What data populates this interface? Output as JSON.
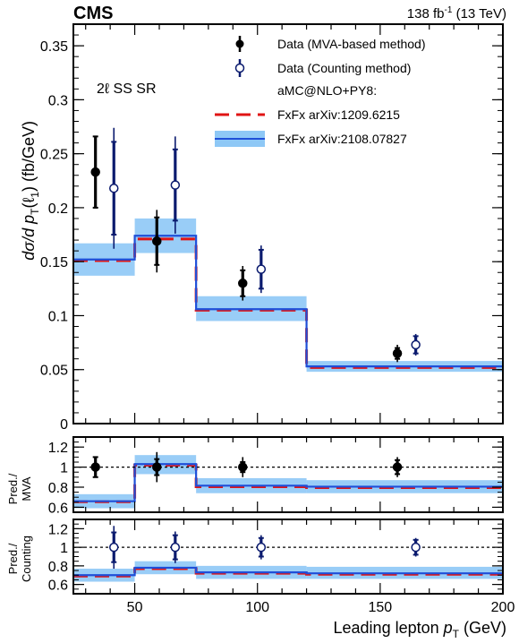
{
  "figure": {
    "experiment": "CMS",
    "lumi_label": "138 fb",
    "lumi_sup": "-1",
    "energy_label": " (13 TeV)",
    "region_label": "2ℓ SS SR",
    "colors": {
      "data_mva": "#000000",
      "data_counting": "#0a1a6e",
      "fxfx_old": "#e01414",
      "fxfx_new_line": "#1f4fd8",
      "fxfx_new_band": "#8ec8f6"
    }
  },
  "chart_data": [
    {
      "type": "line",
      "panel": "main",
      "ylabel_parts": [
        "dσ/d ",
        "p",
        "T",
        "(ℓ",
        "1",
        ")  (fb/GeV)"
      ],
      "ylim": [
        0,
        0.37
      ],
      "yticks": [
        "0",
        "0.05",
        "0.1",
        "0.15",
        "0.2",
        "0.25",
        "0.3",
        "0.35"
      ],
      "xlim": [
        25,
        200
      ],
      "bin_edges": [
        25,
        50,
        75,
        120,
        200
      ],
      "legend": {
        "position": "top-right",
        "entries": [
          "Data (MVA-based method)",
          "Data (Counting method)",
          "aMC@NLO+PY8:",
          "FxFx arXiv:1209.6215",
          "FxFx arXiv:2108.07827"
        ]
      },
      "series": [
        {
          "name": "Data (MVA-based method)",
          "style": "points-filled",
          "x": [
            34,
            59,
            94,
            157
          ],
          "y": [
            0.233,
            0.169,
            0.13,
            0.065
          ],
          "stat_err": [
            0.033,
            0.022,
            0.012,
            0.005
          ],
          "total_err": [
            0.033,
            0.029,
            0.016,
            0.008
          ]
        },
        {
          "name": "Data (Counting method)",
          "style": "points-open",
          "x": [
            41.5,
            66.5,
            101.5,
            164.5
          ],
          "y": [
            0.218,
            0.221,
            0.143,
            0.073
          ],
          "stat_err": [
            0.043,
            0.033,
            0.018,
            0.008
          ],
          "total_err": [
            0.056,
            0.045,
            0.022,
            0.01
          ]
        },
        {
          "name": "FxFx arXiv:1209.6215",
          "style": "step-dashed",
          "values": [
            0.151,
            0.171,
            0.105,
            0.052
          ]
        },
        {
          "name": "FxFx arXiv:2108.07827",
          "style": "step-band",
          "values": [
            0.152,
            0.174,
            0.106,
            0.053
          ],
          "band_low": [
            0.137,
            0.158,
            0.095,
            0.048
          ],
          "band_high": [
            0.167,
            0.19,
            0.118,
            0.058
          ]
        }
      ]
    },
    {
      "type": "line",
      "panel": "ratio-mva",
      "ylabel_lines": [
        "Pred./",
        "MVA"
      ],
      "ylim": [
        0.55,
        1.3
      ],
      "yticks": [
        "0.6",
        "0.8",
        "1",
        "1.2"
      ],
      "reference_line": 1,
      "series": [
        {
          "name": "Data (MVA-based method)",
          "style": "points-filled",
          "x": [
            34,
            59,
            94,
            157
          ],
          "y": [
            1,
            1,
            1,
            1
          ],
          "stat_err": [
            0.1,
            0.08,
            0.05,
            0.07
          ],
          "total_err": [
            0.1,
            0.15,
            0.1,
            0.1
          ]
        },
        {
          "name": "FxFx arXiv:1209.6215",
          "style": "step-dashed",
          "values": [
            0.655,
            1.02,
            0.805,
            0.795
          ]
        },
        {
          "name": "FxFx arXiv:2108.07827",
          "style": "step-band",
          "values": [
            0.66,
            1.03,
            0.815,
            0.805
          ],
          "band_low": [
            0.59,
            0.93,
            0.74,
            0.74
          ],
          "band_high": [
            0.73,
            1.12,
            0.89,
            0.87
          ]
        }
      ]
    },
    {
      "type": "line",
      "panel": "ratio-counting",
      "ylabel_lines": [
        "Pred./",
        "Counting"
      ],
      "ylim": [
        0.5,
        1.3
      ],
      "yticks": [
        "0.6",
        "0.8",
        "1",
        "1.2"
      ],
      "xticks": [
        "50",
        "100",
        "150",
        "200"
      ],
      "xlabel_parts": [
        "Leading lepton ",
        "p",
        "T",
        " (GeV)"
      ],
      "reference_line": 1,
      "series": [
        {
          "name": "Data (Counting method)",
          "style": "points-open",
          "x": [
            41.5,
            66.5,
            101.5,
            164.5
          ],
          "y": [
            1,
            1,
            1,
            1
          ],
          "stat_err": [
            0.16,
            0.13,
            0.1,
            0.08
          ],
          "total_err": [
            0.23,
            0.17,
            0.13,
            0.1
          ]
        },
        {
          "name": "FxFx arXiv:1209.6215",
          "style": "step-dashed",
          "values": [
            0.69,
            0.77,
            0.72,
            0.71
          ]
        },
        {
          "name": "FxFx arXiv:2108.07827",
          "style": "step-band",
          "values": [
            0.7,
            0.78,
            0.73,
            0.72
          ],
          "band_low": [
            0.63,
            0.71,
            0.66,
            0.66
          ],
          "band_high": [
            0.77,
            0.85,
            0.8,
            0.79
          ]
        }
      ]
    }
  ]
}
